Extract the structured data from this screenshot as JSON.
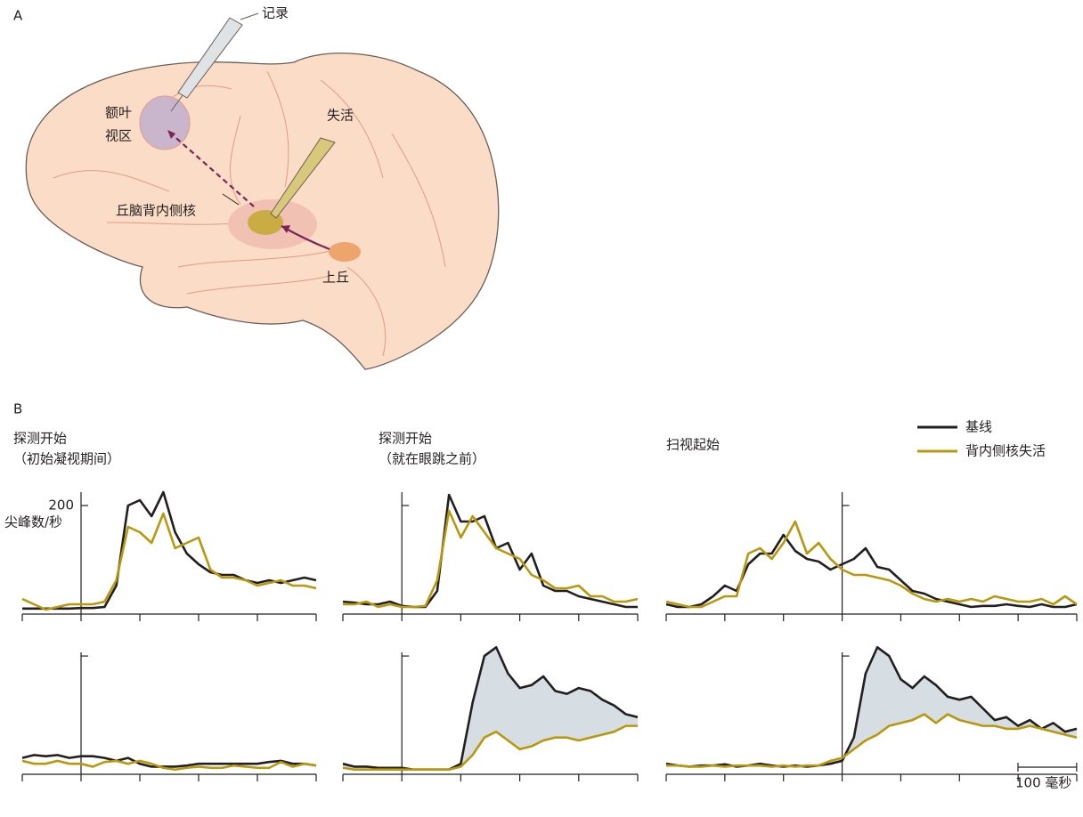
{
  "panels": {
    "a": "A",
    "b": "B"
  },
  "diagram": {
    "recording": "记录",
    "fef": [
      "额叶",
      "视区"
    ],
    "inactivation": "失活",
    "md": "丘脑背内侧核",
    "sc": "上丘"
  },
  "columns": [
    [
      "探测开始",
      "（初始凝视期间）"
    ],
    [
      "探测开始",
      "（就在眼跳之前）"
    ],
    [
      "扫视起始"
    ]
  ],
  "scale_bar": {
    "value": 100,
    "label": "100 毫秒"
  },
  "chart_data": [
    {
      "type": "line",
      "ylabel": "尖峰数/秒",
      "ytick_labels": true,
      "x": [
        -100,
        -80,
        -60,
        -40,
        -20,
        0,
        20,
        40,
        60,
        80,
        100,
        120,
        140,
        160,
        180,
        200,
        220,
        240,
        260,
        280,
        300,
        320,
        340,
        360,
        380,
        400
      ],
      "xlim": [
        -100,
        400
      ],
      "xticks": [
        -100,
        0,
        100,
        200,
        300,
        400
      ],
      "ylim": [
        0,
        240
      ],
      "yticks": [
        200
      ],
      "series": [
        {
          "name": "基线",
          "color": "#231f20",
          "values": [
            7,
            7,
            7,
            7,
            7,
            8,
            8,
            10,
            50,
            200,
            210,
            180,
            225,
            150,
            110,
            90,
            75,
            70,
            70,
            60,
            55,
            60,
            55,
            60,
            65,
            60
          ]
        },
        {
          "name": "背内侧核失活",
          "color": "#b8980e",
          "values": [
            25,
            15,
            5,
            10,
            15,
            15,
            15,
            20,
            60,
            160,
            150,
            130,
            185,
            120,
            130,
            140,
            80,
            65,
            65,
            60,
            50,
            55,
            60,
            50,
            50,
            45
          ]
        }
      ]
    },
    {
      "type": "line",
      "ytick_labels": false,
      "x": [
        -100,
        -80,
        -60,
        -40,
        -20,
        0,
        20,
        40,
        60,
        80,
        100,
        120,
        140,
        160,
        180,
        200,
        220,
        240,
        260,
        280,
        300,
        320,
        340,
        360,
        380,
        400
      ],
      "xlim": [
        -100,
        400
      ],
      "xticks": [
        -100,
        0,
        100,
        200,
        300,
        400
      ],
      "ylim": [
        0,
        240
      ],
      "yticks": [
        200
      ],
      "series": [
        {
          "color": "#231f20",
          "values": [
            20,
            18,
            15,
            15,
            20,
            12,
            10,
            10,
            40,
            220,
            170,
            170,
            180,
            120,
            130,
            80,
            110,
            50,
            40,
            40,
            30,
            25,
            20,
            15,
            10,
            10
          ]
        },
        {
          "color": "#b8980e",
          "values": [
            15,
            15,
            20,
            10,
            15,
            10,
            10,
            12,
            60,
            190,
            140,
            180,
            150,
            120,
            110,
            100,
            70,
            60,
            45,
            45,
            50,
            30,
            30,
            20,
            20,
            25
          ]
        }
      ]
    },
    {
      "type": "line",
      "ytick_labels": false,
      "x": [
        -300,
        -280,
        -260,
        -240,
        -220,
        -200,
        -180,
        -160,
        -140,
        -120,
        -100,
        -80,
        -60,
        -40,
        -20,
        0,
        20,
        40,
        60,
        80,
        100,
        120,
        140,
        160,
        180,
        200,
        220,
        240,
        260,
        280,
        300,
        320,
        340,
        360,
        380,
        400
      ],
      "xlim": [
        -300,
        400
      ],
      "xticks": [
        -300,
        -200,
        -100,
        0,
        100,
        200,
        300,
        400
      ],
      "ylim": [
        0,
        240
      ],
      "yticks": [
        200
      ],
      "series": [
        {
          "color": "#231f20",
          "values": [
            15,
            10,
            10,
            15,
            30,
            50,
            40,
            90,
            110,
            110,
            145,
            115,
            100,
            95,
            80,
            90,
            100,
            120,
            85,
            80,
            60,
            40,
            35,
            25,
            20,
            15,
            10,
            12,
            12,
            15,
            12,
            10,
            15,
            10,
            10,
            15
          ]
        },
        {
          "color": "#b8980e",
          "values": [
            20,
            15,
            10,
            10,
            20,
            30,
            30,
            110,
            120,
            100,
            130,
            170,
            110,
            130,
            100,
            80,
            70,
            70,
            65,
            60,
            50,
            35,
            25,
            20,
            25,
            20,
            25,
            20,
            30,
            25,
            20,
            20,
            25,
            15,
            30,
            15
          ]
        }
      ]
    },
    {
      "type": "line",
      "ytick_labels": false,
      "x": [
        -100,
        -80,
        -60,
        -40,
        -20,
        0,
        20,
        40,
        60,
        80,
        100,
        120,
        140,
        160,
        180,
        200,
        220,
        240,
        260,
        280,
        300,
        320,
        340,
        360,
        380,
        400
      ],
      "xlim": [
        -100,
        400
      ],
      "xticks": [
        -100,
        0,
        100,
        200,
        300,
        400
      ],
      "ylim": [
        0,
        220
      ],
      "yticks": [
        200
      ],
      "series": [
        {
          "color": "#231f20",
          "values": [
            25,
            30,
            28,
            30,
            25,
            28,
            28,
            25,
            20,
            25,
            15,
            10,
            10,
            10,
            12,
            15,
            15,
            15,
            15,
            15,
            15,
            18,
            20,
            15,
            15,
            12
          ]
        },
        {
          "color": "#b8980e",
          "values": [
            20,
            15,
            15,
            20,
            15,
            15,
            10,
            18,
            20,
            15,
            20,
            15,
            8,
            5,
            8,
            10,
            8,
            8,
            12,
            10,
            8,
            8,
            18,
            10,
            15,
            12
          ]
        }
      ]
    },
    {
      "type": "line",
      "ytick_labels": false,
      "fill_between": true,
      "fill_color": "#d6dde3",
      "x": [
        -100,
        -80,
        -60,
        -40,
        -20,
        0,
        20,
        40,
        60,
        80,
        100,
        120,
        140,
        160,
        180,
        200,
        220,
        240,
        260,
        280,
        300,
        320,
        340,
        360,
        380,
        400
      ],
      "xlim": [
        -100,
        400
      ],
      "xticks": [
        -100,
        0,
        100,
        200,
        300,
        400
      ],
      "ylim": [
        0,
        220
      ],
      "yticks": [
        200
      ],
      "series": [
        {
          "color": "#231f20",
          "values": [
            15,
            10,
            10,
            8,
            8,
            8,
            5,
            5,
            5,
            5,
            15,
            120,
            200,
            215,
            170,
            145,
            150,
            165,
            140,
            135,
            145,
            140,
            125,
            115,
            100,
            95
          ]
        },
        {
          "color": "#b8980e",
          "values": [
            8,
            5,
            5,
            5,
            5,
            5,
            5,
            5,
            5,
            5,
            10,
            30,
            60,
            70,
            55,
            40,
            45,
            55,
            60,
            60,
            55,
            60,
            65,
            70,
            80,
            80
          ]
        }
      ]
    },
    {
      "type": "line",
      "ytick_labels": false,
      "fill_between": true,
      "fill_color": "#d6dde3",
      "x": [
        -300,
        -280,
        -260,
        -240,
        -220,
        -200,
        -180,
        -160,
        -140,
        -120,
        -100,
        -80,
        -60,
        -40,
        -20,
        0,
        20,
        40,
        60,
        80,
        100,
        120,
        140,
        160,
        180,
        200,
        220,
        240,
        260,
        280,
        300,
        320,
        340,
        360,
        380,
        400
      ],
      "xlim": [
        -300,
        400
      ],
      "xticks": [
        -300,
        -200,
        -100,
        0,
        100,
        200,
        300,
        400
      ],
      "ylim": [
        0,
        220
      ],
      "yticks": [
        200
      ],
      "series": [
        {
          "color": "#231f20",
          "values": [
            15,
            12,
            10,
            12,
            12,
            14,
            10,
            12,
            15,
            12,
            10,
            12,
            10,
            12,
            15,
            20,
            60,
            170,
            215,
            200,
            160,
            145,
            165,
            150,
            130,
            125,
            130,
            110,
            90,
            95,
            80,
            90,
            75,
            85,
            70,
            75
          ]
        },
        {
          "color": "#b8980e",
          "values": [
            12,
            12,
            10,
            10,
            12,
            10,
            12,
            12,
            12,
            10,
            12,
            10,
            12,
            12,
            20,
            25,
            40,
            55,
            65,
            80,
            85,
            90,
            100,
            85,
            100,
            90,
            85,
            80,
            80,
            75,
            75,
            80,
            75,
            70,
            65,
            60
          ]
        }
      ]
    }
  ]
}
